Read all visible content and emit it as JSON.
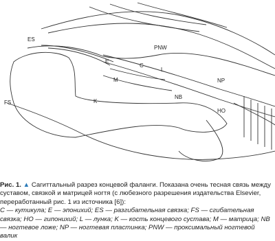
{
  "figure": {
    "labels": [
      "ES",
      "PNW",
      "E",
      "C",
      "L",
      "NP",
      "M",
      "FS",
      "K",
      "NB",
      "HO"
    ]
  },
  "caption": {
    "number": "Рис. 1.",
    "marker": "▲",
    "text": "Сагиттальный разрез концевой фаланги. Показана очень тесная связь между суставом, связкой и матрицей ногтя (с любезного разрешения издательства Elsevier, переработанный рис. 1 из источника [6]):",
    "legend": "C — кутикула; E — эпонихий; ES — разгибательная связка; FS — сгибательная связка; HO — гипонихий; L — лунка; K — кость концевого сустава; M — матрица; NB — ногтевое ложе; NP — ногтевая пластинка; PNW — проксимальный ногтевой валик"
  }
}
